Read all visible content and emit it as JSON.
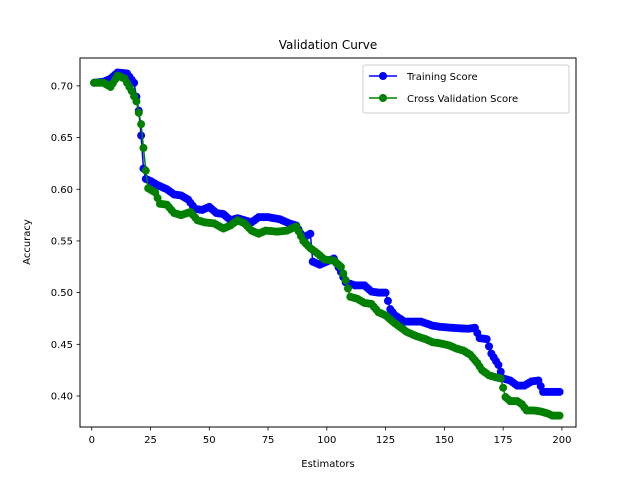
{
  "chart_data": {
    "type": "line",
    "title": "Validation Curve",
    "xlabel": "Estimators",
    "ylabel": "Accuracy",
    "xlim": [
      -5,
      206
    ],
    "ylim": [
      0.37,
      0.727
    ],
    "xticks": [
      0,
      25,
      50,
      75,
      100,
      125,
      150,
      175,
      200
    ],
    "yticks": [
      0.4,
      0.45,
      0.5,
      0.55,
      0.6,
      0.65,
      0.7
    ],
    "xtick_labels": [
      "0",
      "25",
      "50",
      "75",
      "100",
      "125",
      "150",
      "175",
      "200"
    ],
    "ytick_labels": [
      "0.40",
      "0.45",
      "0.50",
      "0.55",
      "0.60",
      "0.65",
      "0.70"
    ],
    "legend_position": "top-right",
    "grid": false,
    "series": [
      {
        "name": "Training Score",
        "color": "#0000ff",
        "marker": "circle",
        "keypoints": [
          [
            1,
            0.703
          ],
          [
            5,
            0.704
          ],
          [
            8,
            0.707
          ],
          [
            11,
            0.713
          ],
          [
            15,
            0.712
          ],
          [
            18,
            0.703
          ],
          [
            20,
            0.676
          ],
          [
            21,
            0.652
          ],
          [
            22,
            0.62
          ],
          [
            23,
            0.61
          ],
          [
            25,
            0.608
          ],
          [
            28,
            0.604
          ],
          [
            32,
            0.6
          ],
          [
            35,
            0.595
          ],
          [
            38,
            0.594
          ],
          [
            41,
            0.59
          ],
          [
            44,
            0.581
          ],
          [
            47,
            0.58
          ],
          [
            50,
            0.583
          ],
          [
            53,
            0.577
          ],
          [
            56,
            0.576
          ],
          [
            59,
            0.57
          ],
          [
            62,
            0.572
          ],
          [
            65,
            0.57
          ],
          [
            68,
            0.568
          ],
          [
            71,
            0.573
          ],
          [
            75,
            0.573
          ],
          [
            80,
            0.571
          ],
          [
            84,
            0.567
          ],
          [
            87,
            0.565
          ],
          [
            90,
            0.553
          ],
          [
            93,
            0.557
          ],
          [
            94,
            0.53
          ],
          [
            97,
            0.527
          ],
          [
            100,
            0.53
          ],
          [
            103,
            0.533
          ],
          [
            106,
            0.52
          ],
          [
            108,
            0.51
          ],
          [
            112,
            0.507
          ],
          [
            116,
            0.507
          ],
          [
            119,
            0.501
          ],
          [
            122,
            0.5
          ],
          [
            125,
            0.5
          ],
          [
            127,
            0.484
          ],
          [
            129,
            0.478
          ],
          [
            133,
            0.472
          ],
          [
            140,
            0.472
          ],
          [
            145,
            0.468
          ],
          [
            148,
            0.467
          ],
          [
            153,
            0.466
          ],
          [
            160,
            0.465
          ],
          [
            163,
            0.466
          ],
          [
            165,
            0.456
          ],
          [
            168,
            0.455
          ],
          [
            170,
            0.441
          ],
          [
            173,
            0.43
          ],
          [
            175,
            0.417
          ],
          [
            178,
            0.415
          ],
          [
            181,
            0.41
          ],
          [
            184,
            0.41
          ],
          [
            187,
            0.414
          ],
          [
            190,
            0.415
          ],
          [
            192,
            0.404
          ],
          [
            196,
            0.404
          ],
          [
            199,
            0.404
          ]
        ]
      },
      {
        "name": "Cross Validation Score",
        "color": "#008000",
        "marker": "circle",
        "keypoints": [
          [
            1,
            0.703
          ],
          [
            5,
            0.703
          ],
          [
            8,
            0.699
          ],
          [
            11,
            0.71
          ],
          [
            14,
            0.707
          ],
          [
            17,
            0.695
          ],
          [
            19,
            0.685
          ],
          [
            20,
            0.674
          ],
          [
            21,
            0.663
          ],
          [
            22,
            0.64
          ],
          [
            23,
            0.618
          ],
          [
            24,
            0.601
          ],
          [
            27,
            0.597
          ],
          [
            29,
            0.586
          ],
          [
            32,
            0.585
          ],
          [
            35,
            0.577
          ],
          [
            38,
            0.575
          ],
          [
            42,
            0.578
          ],
          [
            45,
            0.57
          ],
          [
            48,
            0.568
          ],
          [
            52,
            0.567
          ],
          [
            56,
            0.562
          ],
          [
            59,
            0.565
          ],
          [
            62,
            0.57
          ],
          [
            65,
            0.567
          ],
          [
            68,
            0.56
          ],
          [
            71,
            0.557
          ],
          [
            74,
            0.56
          ],
          [
            79,
            0.559
          ],
          [
            83,
            0.56
          ],
          [
            87,
            0.564
          ],
          [
            90,
            0.55
          ],
          [
            93,
            0.543
          ],
          [
            96,
            0.538
          ],
          [
            99,
            0.532
          ],
          [
            103,
            0.531
          ],
          [
            106,
            0.525
          ],
          [
            108,
            0.512
          ],
          [
            110,
            0.496
          ],
          [
            113,
            0.494
          ],
          [
            116,
            0.49
          ],
          [
            119,
            0.489
          ],
          [
            122,
            0.481
          ],
          [
            125,
            0.478
          ],
          [
            128,
            0.472
          ],
          [
            131,
            0.467
          ],
          [
            134,
            0.462
          ],
          [
            138,
            0.458
          ],
          [
            142,
            0.455
          ],
          [
            145,
            0.452
          ],
          [
            148,
            0.451
          ],
          [
            152,
            0.449
          ],
          [
            155,
            0.446
          ],
          [
            158,
            0.444
          ],
          [
            161,
            0.44
          ],
          [
            164,
            0.432
          ],
          [
            166,
            0.425
          ],
          [
            169,
            0.42
          ],
          [
            172,
            0.418
          ],
          [
            174,
            0.417
          ],
          [
            176,
            0.399
          ],
          [
            178,
            0.395
          ],
          [
            181,
            0.395
          ],
          [
            183,
            0.392
          ],
          [
            185,
            0.386
          ],
          [
            188,
            0.386
          ],
          [
            191,
            0.385
          ],
          [
            194,
            0.383
          ],
          [
            196,
            0.381
          ],
          [
            199,
            0.381
          ]
        ]
      }
    ]
  }
}
